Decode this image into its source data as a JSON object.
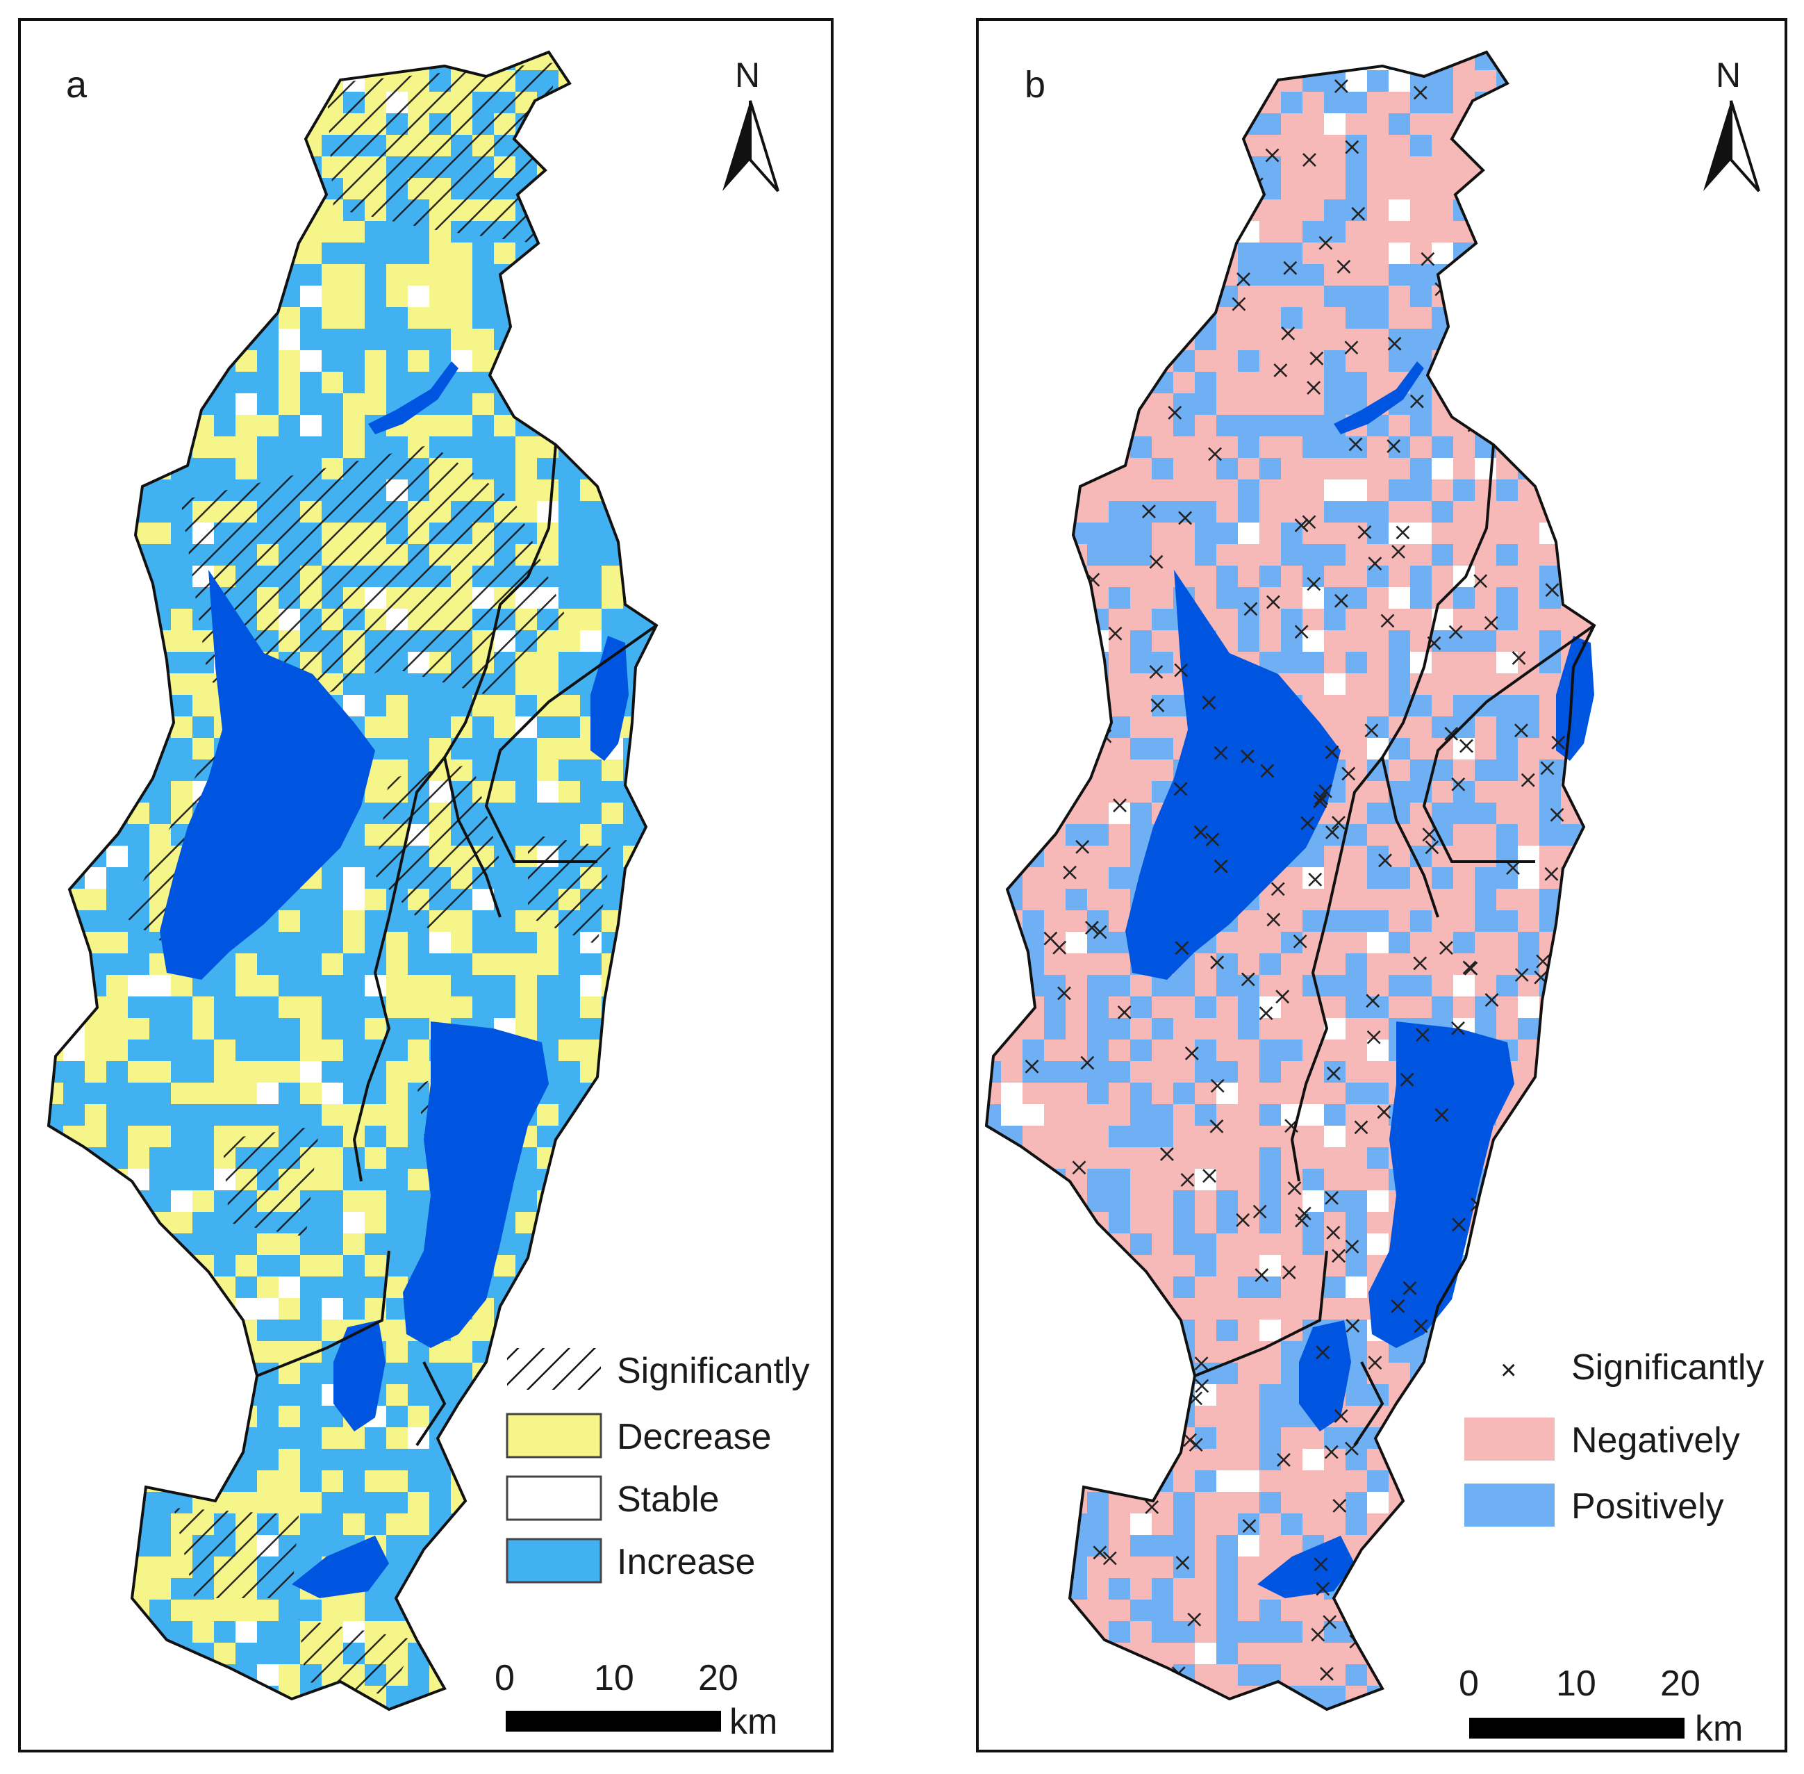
{
  "colors": {
    "decrease": "#f5f589",
    "stable": "#ffffff",
    "increase": "#41b1f2",
    "negatively": "#f7b8b8",
    "positively": "#6fb0f5",
    "lake": "#0055e0",
    "boundary": "#111111",
    "hatch": "#111111"
  },
  "panel_a": {
    "letter": "a",
    "north_label": "N",
    "legend": {
      "significantly": "Significantly",
      "decrease": "Decrease",
      "stable": "Stable",
      "increase": "Increase"
    },
    "scalebar": {
      "tick0": "0",
      "tick1": "10",
      "tick2": "20",
      "unit": "km"
    }
  },
  "panel_b": {
    "letter": "b",
    "north_label": "N",
    "legend": {
      "significantly_marker": "×",
      "significantly": "Significantly",
      "negatively": "Negatively",
      "positively": "Positively"
    },
    "scalebar": {
      "tick0": "0",
      "tick1": "10",
      "tick2": "20",
      "unit": "km"
    }
  }
}
